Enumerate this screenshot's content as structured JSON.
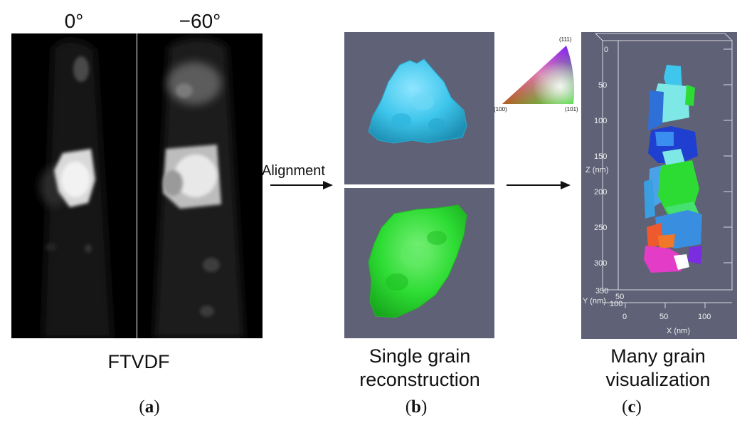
{
  "panel_a": {
    "angle_left": "0°",
    "angle_right": "−60°",
    "caption": "FTVDF",
    "label_open": "(",
    "label_letter": "a",
    "label_close": ")"
  },
  "arrow1": {
    "label": "Alignment"
  },
  "panel_b": {
    "caption_line1": "Single grain",
    "caption_line2": "reconstruction",
    "label_open": "(",
    "label_letter": "b",
    "label_close": ")",
    "top_grain_color": "#3ec6ec",
    "bottom_grain_color": "#2ddc33"
  },
  "ipf_key": {
    "corner_111": "(111)",
    "corner_100": "(100)",
    "corner_101": "(101)"
  },
  "panel_c": {
    "caption_line1": "Many grain",
    "caption_line2": "visualization",
    "label_open": "(",
    "label_letter": "c",
    "label_close": ")",
    "z_axis_label": "Z (nm)",
    "z_ticks": [
      "0",
      "50",
      "100",
      "150",
      "200",
      "250",
      "300",
      "350"
    ],
    "y_axis_label": "Y (nm)",
    "y_ticks": [
      "50",
      "100"
    ],
    "x_axis_label": "X (nm)",
    "x_ticks": [
      "0",
      "50",
      "100"
    ]
  }
}
